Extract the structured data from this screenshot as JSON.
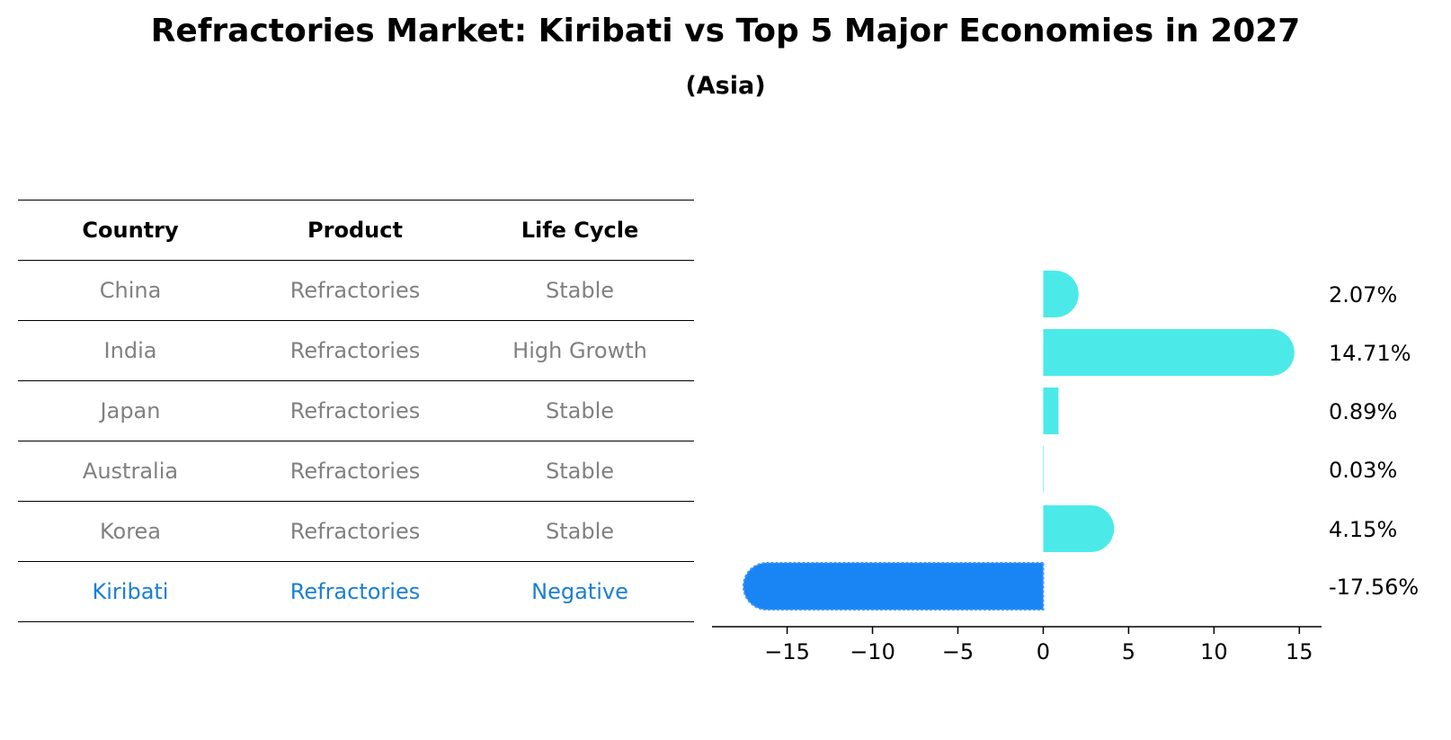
{
  "title": "Refractories Market: Kiribati vs Top 5 Major Economies in 2027",
  "subtitle": "(Asia)",
  "table": {
    "headers": [
      "Country",
      "Product",
      "Life Cycle"
    ],
    "rows": [
      {
        "country": "China",
        "product": "Refractories",
        "life_cycle": "Stable",
        "highlight": false
      },
      {
        "country": "India",
        "product": "Refractories",
        "life_cycle": "High Growth",
        "highlight": false
      },
      {
        "country": "Japan",
        "product": "Refractories",
        "life_cycle": "Stable",
        "highlight": false
      },
      {
        "country": "Australia",
        "product": "Refractories",
        "life_cycle": "Stable",
        "highlight": false
      },
      {
        "country": "Korea",
        "product": "Refractories",
        "life_cycle": "Stable",
        "highlight": false
      },
      {
        "country": "Kiribati",
        "product": "Refractories",
        "life_cycle": "Negative",
        "highlight": true
      }
    ]
  },
  "colors": {
    "muted_text": "#808080",
    "highlight_text": "#1a7fd4",
    "bar_default": "#4beae8",
    "bar_highlight": "#1985f4"
  },
  "chart_data": {
    "type": "bar",
    "orientation": "horizontal",
    "categories": [
      "China",
      "India",
      "Japan",
      "Australia",
      "Korea",
      "Kiribati"
    ],
    "values": [
      2.07,
      14.71,
      0.89,
      0.03,
      4.15,
      -17.56
    ],
    "labels": [
      "2.07%",
      "14.71%",
      "0.89%",
      "0.03%",
      "4.15%",
      "-17.56%"
    ],
    "xticks": [
      -15,
      -10,
      -5,
      0,
      5,
      10,
      15
    ],
    "xlim": [
      -19.4,
      16.3
    ],
    "grid": false
  }
}
